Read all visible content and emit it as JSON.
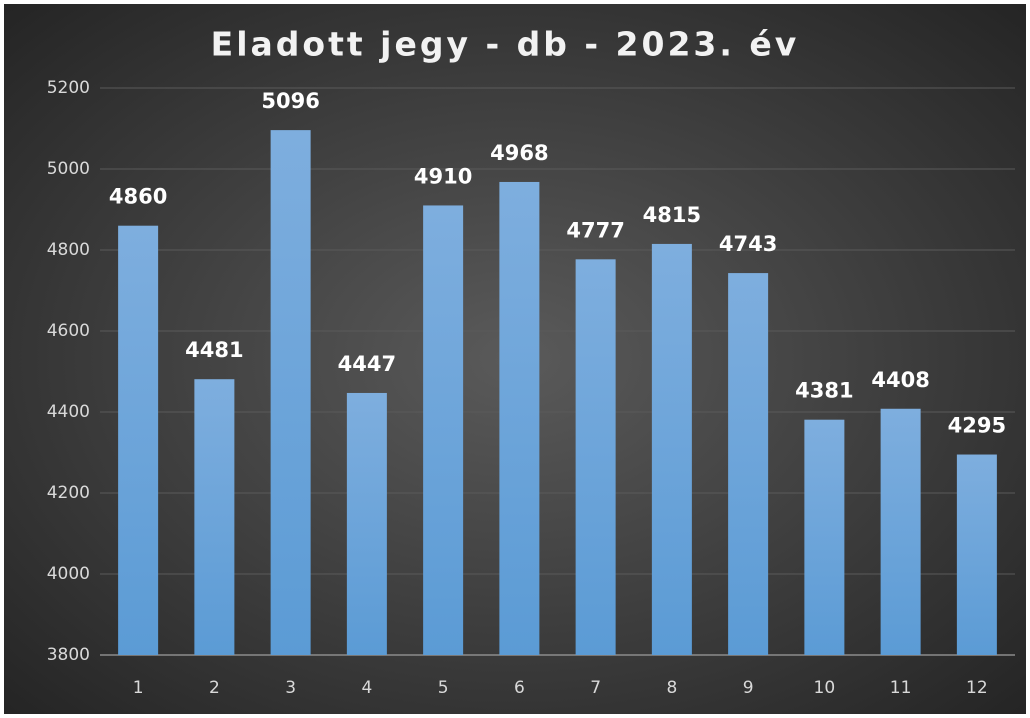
{
  "chart_data": {
    "type": "bar",
    "title": "Eladott jegy - db - 2023. év",
    "categories": [
      "1",
      "2",
      "3",
      "4",
      "5",
      "6",
      "7",
      "8",
      "9",
      "10",
      "11",
      "12"
    ],
    "values": [
      4860,
      4481,
      5096,
      4447,
      4910,
      4968,
      4777,
      4815,
      4743,
      4381,
      4408,
      4295
    ],
    "color": "#5b9bd5",
    "ylim": [
      3800,
      5200
    ],
    "yticks": [
      3800,
      4000,
      4200,
      4400,
      4600,
      4800,
      5000,
      5200
    ],
    "grid": true
  }
}
